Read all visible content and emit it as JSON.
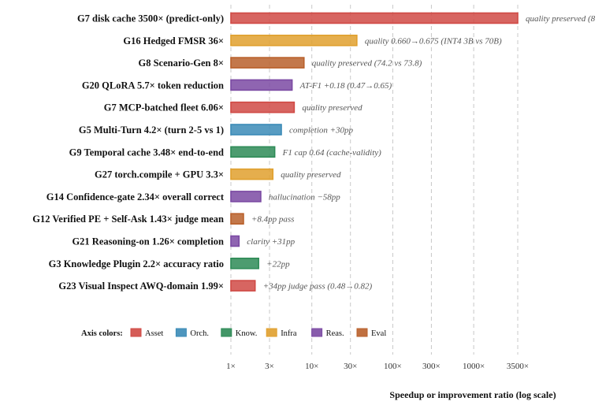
{
  "chart_data": {
    "type": "bar",
    "orientation": "horizontal",
    "xscale": "log",
    "xlim": [
      1,
      3500
    ],
    "xlabel": "Speedup or improvement ratio (log scale)",
    "grid": true,
    "tick_values": [
      1,
      3,
      10,
      30,
      100,
      300,
      1000,
      3500
    ],
    "tick_labels": [
      "1×",
      "3×",
      "10×",
      "30×",
      "100×",
      "300×",
      "1000×",
      "3500×"
    ],
    "bars": [
      {
        "label": "G7 disk cache 3500× (predict-only)",
        "value": 3500,
        "category": "Asset",
        "annotation": "quality preserved (8"
      },
      {
        "label": "G16 Hedged FMSR 36×",
        "value": 36,
        "category": "Infra",
        "annotation": "quality 0.660→0.675 (INT4 3B vs 70B)"
      },
      {
        "label": "G8 Scenario-Gen 8×",
        "value": 8,
        "category": "Eval",
        "annotation": "quality preserved (74.2 vs 73.8)"
      },
      {
        "label": "G20 QLoRA 5.7× token reduction",
        "value": 5.7,
        "category": "Reas.",
        "annotation": "AT-F1 +0.18 (0.47→0.65)"
      },
      {
        "label": "G7 MCP-batched fleet 6.06×",
        "value": 6.06,
        "category": "Asset",
        "annotation": "quality preserved"
      },
      {
        "label": "G5 Multi-Turn 4.2× (turn 2-5 vs 1)",
        "value": 4.2,
        "category": "Orch.",
        "annotation": "completion +30pp"
      },
      {
        "label": "G9 Temporal cache 3.48× end-to-end",
        "value": 3.48,
        "category": "Know.",
        "annotation": "F1 cap 0.64 (cache-validity)"
      },
      {
        "label": "G27 torch.compile + GPU 3.3×",
        "value": 3.3,
        "category": "Infra",
        "annotation": "quality preserved"
      },
      {
        "label": "G14 Confidence-gate 2.34× overall correct",
        "value": 2.34,
        "category": "Reas.",
        "annotation": "hallucination −58pp"
      },
      {
        "label": "G12 Verified PE + Self-Ask 1.43× judge mean",
        "value": 1.43,
        "category": "Eval",
        "annotation": "+8.4pp pass"
      },
      {
        "label": "G21 Reasoning-on 1.26× completion",
        "value": 1.26,
        "category": "Reas.",
        "annotation": "clarity +31pp"
      },
      {
        "label": "G3 Knowledge Plugin 2.2× accuracy ratio",
        "value": 2.2,
        "category": "Know.",
        "annotation": "+22pp"
      },
      {
        "label": "G23 Visual Inspect AWQ-domain 1.99×",
        "value": 1.99,
        "category": "Asset",
        "annotation": "+34pp judge pass (0.48→0.82)"
      }
    ],
    "legend": {
      "title": "Axis colors:",
      "placement": "bottom-left",
      "items": [
        {
          "name": "Asset",
          "color": "#d04a45"
        },
        {
          "name": "Orch.",
          "color": "#3b8bb7"
        },
        {
          "name": "Know.",
          "color": "#2e8b57"
        },
        {
          "name": "Infra",
          "color": "#e0a02e"
        },
        {
          "name": "Reas.",
          "color": "#7b4aa3"
        },
        {
          "name": "Eval",
          "color": "#b9602b"
        }
      ]
    }
  }
}
